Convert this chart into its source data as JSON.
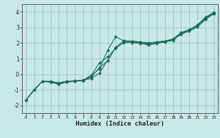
{
  "title": "",
  "xlabel": "Humidex (Indice chaleur)",
  "ylabel": "",
  "bg_color": "#c8e8e8",
  "grid_color": "#a8c8c8",
  "line_color": "#1a6b5a",
  "xlim": [
    -0.5,
    23.5
  ],
  "ylim": [
    -2.5,
    4.5
  ],
  "xticks": [
    0,
    1,
    2,
    3,
    4,
    5,
    6,
    7,
    8,
    9,
    10,
    11,
    12,
    13,
    14,
    15,
    16,
    17,
    18,
    19,
    20,
    21,
    22,
    23
  ],
  "yticks": [
    -2,
    -1,
    0,
    1,
    2,
    3,
    4
  ],
  "lines": [
    {
      "x": [
        0,
        1,
        2,
        3,
        4,
        5,
        6,
        7,
        8,
        9,
        10,
        11,
        12,
        13,
        14,
        15,
        16,
        17,
        18,
        19,
        20,
        21,
        22,
        23
      ],
      "y": [
        -1.65,
        -1.0,
        -0.45,
        -0.45,
        -0.55,
        -0.45,
        -0.42,
        -0.38,
        -0.28,
        0.08,
        0.88,
        1.72,
        2.02,
        2.07,
        2.02,
        1.92,
        2.02,
        2.12,
        2.22,
        2.62,
        2.82,
        3.12,
        3.62,
        3.92
      ]
    },
    {
      "x": [
        0,
        1,
        2,
        3,
        4,
        5,
        6,
        7,
        8,
        9,
        10,
        11,
        12,
        13,
        14,
        15,
        16,
        17,
        18,
        19,
        20,
        21,
        22,
        23
      ],
      "y": [
        -1.65,
        -1.0,
        -0.45,
        -0.5,
        -0.65,
        -0.5,
        -0.45,
        -0.42,
        -0.08,
        0.35,
        1.55,
        2.42,
        2.12,
        2.02,
        1.97,
        1.87,
        1.97,
        2.07,
        2.17,
        2.57,
        2.77,
        3.02,
        3.52,
        3.87
      ]
    },
    {
      "x": [
        0,
        1,
        2,
        3,
        4,
        5,
        6,
        7,
        8,
        9,
        10,
        11,
        12,
        13,
        14,
        15,
        16,
        17,
        18,
        19,
        20,
        21,
        22,
        23
      ],
      "y": [
        -1.65,
        -1.0,
        -0.45,
        -0.52,
        -0.62,
        -0.47,
        -0.42,
        -0.38,
        -0.05,
        0.72,
        1.12,
        1.67,
        2.07,
        2.12,
        2.07,
        1.97,
        2.07,
        2.12,
        2.27,
        2.67,
        2.87,
        3.17,
        3.67,
        3.97
      ]
    },
    {
      "x": [
        0,
        1,
        2,
        3,
        4,
        5,
        6,
        7,
        8,
        9,
        10,
        11,
        12,
        13,
        14,
        15,
        16,
        17,
        18,
        19,
        20,
        21,
        22,
        23
      ],
      "y": [
        -1.65,
        -1.0,
        -0.45,
        -0.48,
        -0.58,
        -0.48,
        -0.43,
        -0.4,
        -0.18,
        0.42,
        0.87,
        1.72,
        2.17,
        2.12,
        2.07,
        2.02,
        2.07,
        2.12,
        2.22,
        2.62,
        2.82,
        3.12,
        3.57,
        3.92
      ]
    }
  ]
}
